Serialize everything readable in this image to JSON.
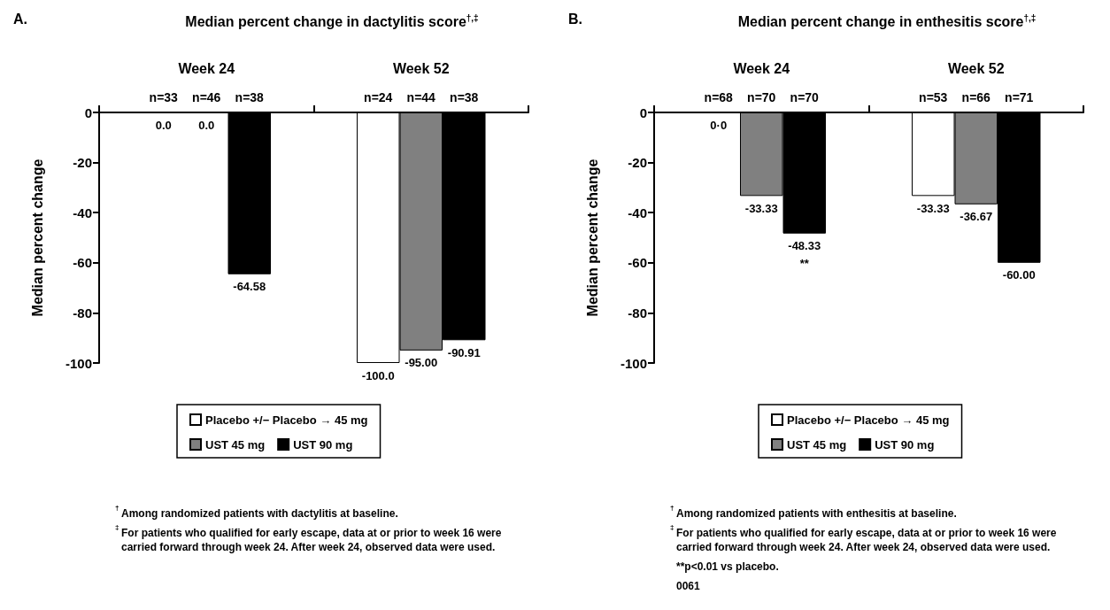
{
  "chart_data": [
    {
      "type": "bar",
      "title": "Median percent change in dactylitis score$^{†,‡}$",
      "ylabel": "Median percent change",
      "categories": [
        "Week 24",
        "Week 52"
      ],
      "series": [
        {
          "name": "Placebo +/− Placebo → 45 mg",
          "color": "#ffffff",
          "values": [
            0,
            -100
          ],
          "value_labels": [
            "0.0",
            "-100.0"
          ]
        },
        {
          "name": "UST 45 mg",
          "color": "#808080",
          "values": [
            0,
            -95
          ],
          "value_labels": [
            "0.0",
            "-95.00"
          ]
        },
        {
          "name": "UST 90 mg",
          "color": "#000000",
          "values": [
            -64.58,
            -90.91
          ],
          "value_labels": [
            "-64.58",
            "-90.91"
          ]
        }
      ],
      "ylim": [
        -100,
        0
      ],
      "yticks": [
        0,
        -20,
        -40,
        -60,
        -80,
        -100
      ],
      "legend": "bottom",
      "annotations": [
        "A.",
        {
          "text": "n=33",
          "x": "Week 24",
          "y": 0
        },
        {
          "text": "n=46",
          "x": "Week 24",
          "y": 0
        },
        {
          "text": "n=38",
          "x": "Week 24",
          "y": 0
        },
        {
          "text": "n=24",
          "x": "Week 52",
          "y": 0
        },
        {
          "text": "n=44",
          "x": "Week 52",
          "y": 0
        },
        {
          "text": "n=38",
          "x": "Week 52",
          "y": 0
        },
        "$^{†}$Among randomized patients with dactylitis at baseline.",
        "$^{‡}$For patients who qualified for early escape, data at or prior to week 16 were carried forward through week 24. After week 24, observed data were used."
      ]
    },
    {
      "type": "bar",
      "title": "Median percent change in enthesitis score$^{†,‡}$",
      "ylabel": "Median percent change",
      "categories": [
        "Week 24",
        "Week 52"
      ],
      "series": [
        {
          "name": "Placebo +/− Placebo → 45 mg",
          "color": "#ffffff",
          "values": [
            0,
            -33.33
          ],
          "value_labels": [
            "0·0",
            "-33.33"
          ]
        },
        {
          "name": "UST 45 mg",
          "color": "#808080",
          "values": [
            -33.33,
            -36.67
          ],
          "value_labels": [
            "-33.33",
            "-36.67"
          ]
        },
        {
          "name": "UST 90 mg",
          "color": "#000000",
          "values": [
            -48.33,
            -60
          ],
          "value_labels": [
            "-48.33\n**",
            "-60.00"
          ]
        }
      ],
      "ylim": [
        -100,
        0
      ],
      "yticks": [
        0,
        -20,
        -40,
        -60,
        -80,
        -100
      ],
      "legend": "bottom",
      "annotations": [
        "B.",
        {
          "text": "n=68",
          "x": "Week 24",
          "y": 0
        },
        {
          "text": "n=70",
          "x": "Week 24",
          "y": 0
        },
        {
          "text": "n=70",
          "x": "Week 24",
          "y": 0
        },
        {
          "text": "n=53",
          "x": "Week 52",
          "y": 0
        },
        {
          "text": "n=66",
          "x": "Week 52",
          "y": 0
        },
        {
          "text": "n=71",
          "x": "Week 52",
          "y": 0
        },
        "$^{†}$Among randomized patients with enthesitis at baseline.",
        "$^{‡}$For patients who qualified for early escape, data at or prior to week 16 were carried forward through week 24. After week 24, observed data were used.",
        "**p<0.01 vs placebo.",
        "0061"
      ]
    }
  ]
}
